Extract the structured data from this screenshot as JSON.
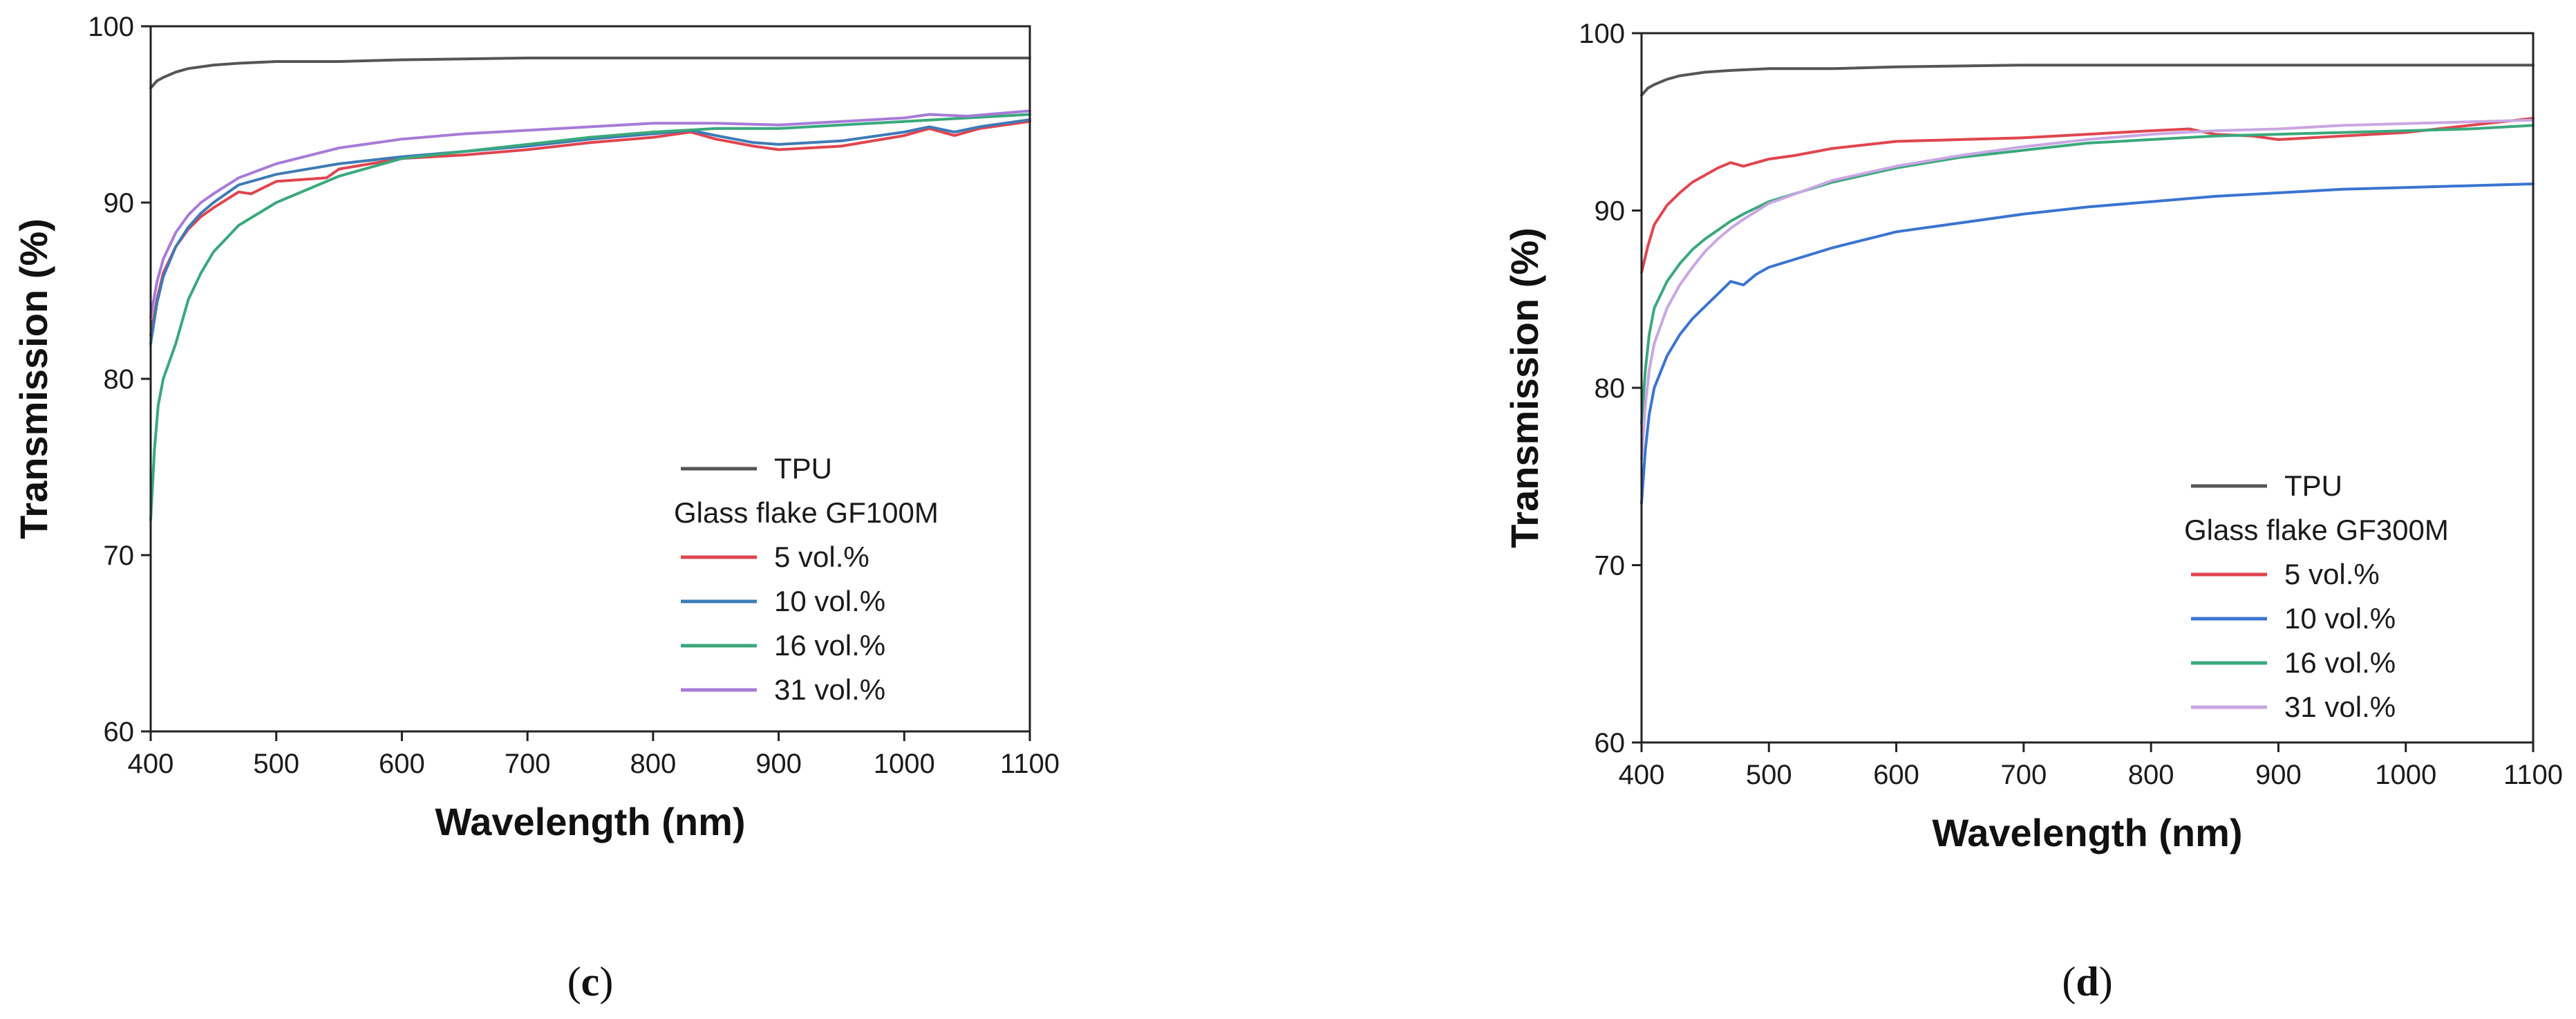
{
  "chart_data": [
    {
      "id": "c",
      "type": "line",
      "panel_label": "c",
      "xlabel": "Wavelength (nm)",
      "ylabel": "Transmission (%)",
      "xlim": [
        400,
        1100
      ],
      "ylim": [
        60,
        100
      ],
      "xticks": [
        400,
        500,
        600,
        700,
        800,
        900,
        1000,
        1100
      ],
      "yticks": [
        60,
        70,
        80,
        90,
        100
      ],
      "legend": {
        "placement": "bottom-right",
        "heading": "Glass flake GF100M"
      },
      "series": [
        {
          "name": "TPU",
          "color": "#555555",
          "x": [
            400,
            405,
            410,
            420,
            430,
            440,
            450,
            470,
            500,
            550,
            600,
            700,
            800,
            900,
            1000,
            1100
          ],
          "y": [
            96.5,
            96.9,
            97.1,
            97.4,
            97.6,
            97.7,
            97.8,
            97.9,
            98.0,
            98.0,
            98.1,
            98.2,
            98.2,
            98.2,
            98.2,
            98.2
          ]
        },
        {
          "name": "5 vol.%",
          "color": "#e0454f",
          "x": [
            400,
            405,
            410,
            420,
            430,
            440,
            450,
            470,
            480,
            500,
            540,
            550,
            600,
            650,
            700,
            750,
            800,
            830,
            850,
            880,
            900,
            950,
            1000,
            1020,
            1040,
            1060,
            1100
          ],
          "y": [
            82.5,
            84.5,
            86.0,
            87.5,
            88.5,
            89.2,
            89.7,
            90.6,
            90.5,
            91.2,
            91.4,
            91.9,
            92.5,
            92.7,
            93.0,
            93.4,
            93.7,
            94.0,
            93.6,
            93.2,
            93.0,
            93.2,
            93.8,
            94.2,
            93.8,
            94.2,
            94.6
          ]
        },
        {
          "name": "10 vol.%",
          "color": "#3e7bb6",
          "x": [
            400,
            405,
            410,
            420,
            430,
            440,
            450,
            470,
            500,
            550,
            600,
            650,
            700,
            750,
            800,
            830,
            850,
            880,
            900,
            950,
            1000,
            1020,
            1040,
            1060,
            1100
          ],
          "y": [
            82.0,
            84.3,
            85.8,
            87.5,
            88.6,
            89.4,
            90.0,
            91.0,
            91.6,
            92.2,
            92.6,
            92.9,
            93.2,
            93.6,
            93.9,
            94.1,
            93.8,
            93.4,
            93.3,
            93.5,
            94.0,
            94.3,
            94.0,
            94.3,
            94.7
          ]
        },
        {
          "name": "16 vol.%",
          "color": "#3aa87c",
          "x": [
            400,
            403,
            406,
            410,
            420,
            430,
            440,
            450,
            470,
            500,
            550,
            600,
            650,
            700,
            750,
            800,
            850,
            900,
            950,
            1000,
            1050,
            1100
          ],
          "y": [
            72.0,
            76.0,
            78.5,
            80.0,
            82.0,
            84.5,
            86.0,
            87.2,
            88.7,
            90.0,
            91.5,
            92.5,
            92.9,
            93.3,
            93.7,
            94.0,
            94.2,
            94.2,
            94.4,
            94.6,
            94.8,
            95.0
          ]
        },
        {
          "name": "31 vol.%",
          "color": "#a77bd8",
          "x": [
            400,
            405,
            410,
            420,
            430,
            440,
            450,
            470,
            500,
            550,
            600,
            650,
            700,
            750,
            800,
            850,
            900,
            950,
            1000,
            1020,
            1050,
            1100
          ],
          "y": [
            83.5,
            85.5,
            86.8,
            88.3,
            89.3,
            90.0,
            90.5,
            91.4,
            92.2,
            93.1,
            93.6,
            93.9,
            94.1,
            94.3,
            94.5,
            94.5,
            94.4,
            94.6,
            94.8,
            95.0,
            94.9,
            95.2
          ]
        }
      ]
    },
    {
      "id": "d",
      "type": "line",
      "panel_label": "d",
      "xlabel": "Wavelength (nm)",
      "ylabel": "Transmission (%)",
      "xlim": [
        400,
        1100
      ],
      "ylim": [
        60,
        100
      ],
      "xticks": [
        400,
        500,
        600,
        700,
        800,
        900,
        1000,
        1100
      ],
      "yticks": [
        60,
        70,
        80,
        90,
        100
      ],
      "legend": {
        "placement": "bottom-right",
        "heading": "Glass flake GF300M"
      },
      "series": [
        {
          "name": "TPU",
          "color": "#555555",
          "x": [
            400,
            405,
            410,
            420,
            430,
            440,
            450,
            470,
            500,
            550,
            600,
            700,
            800,
            900,
            1000,
            1100
          ],
          "y": [
            96.5,
            96.9,
            97.1,
            97.4,
            97.6,
            97.7,
            97.8,
            97.9,
            98.0,
            98.0,
            98.1,
            98.2,
            98.2,
            98.2,
            98.2,
            98.2
          ]
        },
        {
          "name": "5 vol.%",
          "color": "#e0454f",
          "x": [
            400,
            405,
            410,
            420,
            430,
            440,
            450,
            460,
            470,
            480,
            500,
            520,
            550,
            600,
            650,
            700,
            750,
            800,
            830,
            850,
            880,
            900,
            950,
            1000,
            1050,
            1100
          ],
          "y": [
            86.5,
            88.0,
            89.2,
            90.3,
            91.0,
            91.6,
            92.0,
            92.4,
            92.7,
            92.5,
            92.9,
            93.1,
            93.5,
            93.9,
            94.0,
            94.1,
            94.3,
            94.5,
            94.6,
            94.3,
            94.2,
            94.0,
            94.2,
            94.4,
            94.8,
            95.2
          ]
        },
        {
          "name": "10 vol.%",
          "color": "#3a74d0",
          "x": [
            400,
            403,
            406,
            410,
            420,
            430,
            440,
            450,
            460,
            470,
            480,
            490,
            500,
            550,
            600,
            650,
            700,
            750,
            800,
            850,
            900,
            950,
            1000,
            1050,
            1100
          ],
          "y": [
            73.5,
            76.5,
            78.5,
            80.0,
            81.8,
            83.0,
            83.9,
            84.6,
            85.3,
            86.0,
            85.8,
            86.4,
            86.8,
            87.9,
            88.8,
            89.3,
            89.8,
            90.2,
            90.5,
            90.8,
            91.0,
            91.2,
            91.3,
            91.4,
            91.5
          ]
        },
        {
          "name": "16 vol.%",
          "color": "#3aa87c",
          "x": [
            400,
            403,
            406,
            410,
            420,
            430,
            440,
            450,
            460,
            470,
            480,
            500,
            550,
            600,
            650,
            700,
            750,
            800,
            850,
            900,
            950,
            1000,
            1050,
            1100
          ],
          "y": [
            78.0,
            81.0,
            83.0,
            84.5,
            86.0,
            87.0,
            87.8,
            88.4,
            88.9,
            89.4,
            89.8,
            90.5,
            91.6,
            92.4,
            93.0,
            93.4,
            93.8,
            94.0,
            94.2,
            94.3,
            94.4,
            94.5,
            94.6,
            94.8
          ]
        },
        {
          "name": "31 vol.%",
          "color": "#c9a6e3",
          "x": [
            400,
            403,
            406,
            410,
            420,
            430,
            440,
            450,
            460,
            470,
            480,
            500,
            550,
            600,
            650,
            700,
            750,
            800,
            850,
            900,
            950,
            1000,
            1050,
            1100
          ],
          "y": [
            76.0,
            79.0,
            81.0,
            82.5,
            84.5,
            85.8,
            86.8,
            87.7,
            88.4,
            89.0,
            89.5,
            90.4,
            91.7,
            92.5,
            93.1,
            93.6,
            94.0,
            94.3,
            94.5,
            94.6,
            94.8,
            94.9,
            95.0,
            95.1
          ]
        }
      ]
    }
  ]
}
